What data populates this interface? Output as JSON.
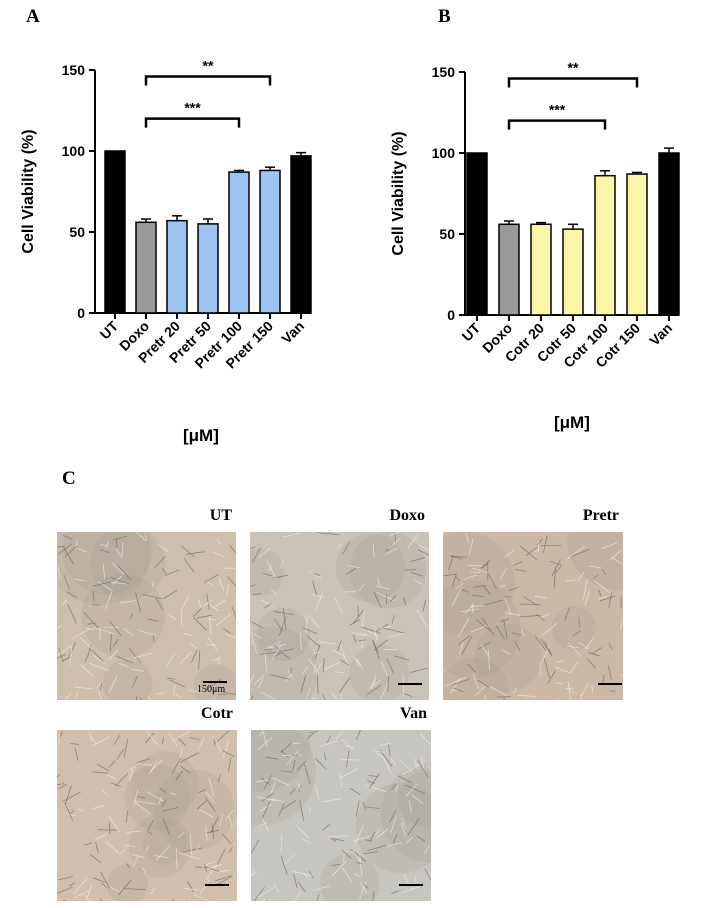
{
  "panels": {
    "a_label": "A",
    "b_label": "B",
    "c_label": "C"
  },
  "chart_data": [
    {
      "type": "bar",
      "panel": "A",
      "ylabel": "Cell Viability (%)",
      "xlabel": "[μM]",
      "ylim": [
        0,
        150
      ],
      "yticks": [
        0,
        50,
        100,
        150
      ],
      "categories": [
        "UT",
        "Doxo",
        "Pretr 20",
        "Pretr 50",
        "Pretr 100",
        "Pretr 150",
        "Van"
      ],
      "values": [
        100,
        56,
        57,
        55,
        87,
        88,
        97
      ],
      "errors": [
        0,
        2,
        3,
        3,
        1,
        2,
        2
      ],
      "colors": [
        "#000000",
        "#999999",
        "#9dc3f0",
        "#9dc3f0",
        "#9dc3f0",
        "#9dc3f0",
        "#000000"
      ],
      "significance": [
        {
          "from": "Doxo",
          "to": "Pretr 150",
          "label": "**"
        },
        {
          "from": "Doxo",
          "to": "Pretr 100",
          "label": "***"
        }
      ]
    },
    {
      "type": "bar",
      "panel": "B",
      "ylabel": "Cell Viability (%)",
      "xlabel": "[μM]",
      "ylim": [
        0,
        150
      ],
      "yticks": [
        0,
        50,
        100,
        150
      ],
      "categories": [
        "UT",
        "Doxo",
        "Cotr 20",
        "Cotr 50",
        "Cotr 100",
        "Cotr 150",
        "Van"
      ],
      "values": [
        100,
        56,
        56,
        53,
        86,
        87,
        100
      ],
      "errors": [
        0,
        2,
        1,
        3,
        3,
        1,
        3
      ],
      "colors": [
        "#000000",
        "#999999",
        "#fcf7a8",
        "#fcf7a8",
        "#fcf7a8",
        "#fcf7a8",
        "#000000"
      ],
      "significance": [
        {
          "from": "Doxo",
          "to": "Cotr 150",
          "label": "**"
        },
        {
          "from": "Doxo",
          "to": "Cotr 100",
          "label": "***"
        }
      ]
    }
  ],
  "micrographs": [
    {
      "title": "UT",
      "scale_label": "150μm",
      "tint": "#cdbfae"
    },
    {
      "title": "Doxo",
      "scale_label": "",
      "tint": "#c8c2b8"
    },
    {
      "title": "Pretr",
      "scale_label": "",
      "tint": "#cbb9a6"
    },
    {
      "title": "Cotr",
      "scale_label": "",
      "tint": "#d0bfac"
    },
    {
      "title": "Van",
      "scale_label": "",
      "tint": "#c7c5bf"
    }
  ]
}
